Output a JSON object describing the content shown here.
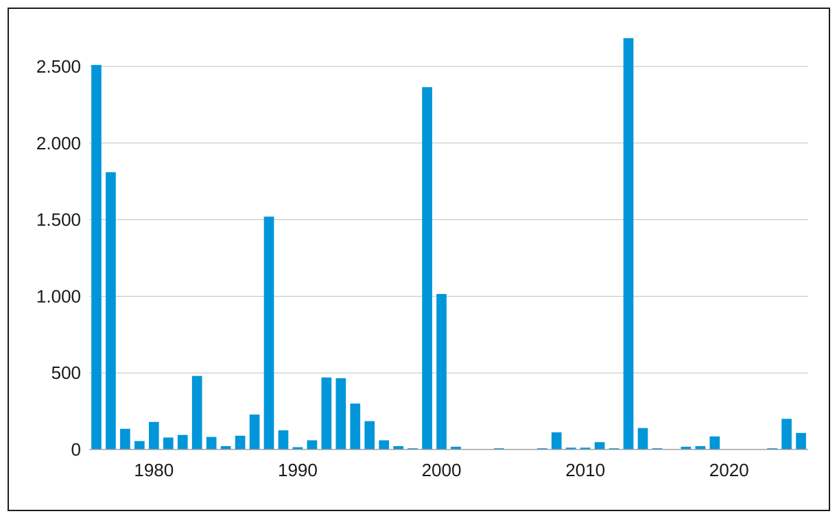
{
  "chart_data": {
    "type": "bar",
    "title": "",
    "xlabel": "",
    "ylabel": "",
    "bar_color": "#0096d9",
    "gridline_color": "#bfbfbf",
    "ylim": [
      0,
      2800
    ],
    "xlim": [
      1975.5,
      2025.5
    ],
    "grid": "horizontal",
    "y_ticks": [
      0,
      500,
      1000,
      1500,
      2000,
      2500
    ],
    "y_tick_labels": [
      "0",
      "500",
      "1.000",
      "1.500",
      "2.000",
      "2.500"
    ],
    "x_ticks": [
      1980,
      1990,
      2000,
      2010,
      2020
    ],
    "x_tick_labels": [
      "1980",
      "1990",
      "2000",
      "2010",
      "2020"
    ],
    "categories": [
      1976,
      1977,
      1978,
      1979,
      1980,
      1981,
      1982,
      1983,
      1984,
      1985,
      1986,
      1987,
      1988,
      1989,
      1990,
      1991,
      1992,
      1993,
      1994,
      1995,
      1996,
      1997,
      1998,
      1999,
      2000,
      2001,
      2002,
      2003,
      2004,
      2005,
      2006,
      2007,
      2008,
      2009,
      2010,
      2011,
      2012,
      2013,
      2014,
      2015,
      2016,
      2017,
      2018,
      2019,
      2020,
      2021,
      2022,
      2023,
      2024,
      2025
    ],
    "values": [
      2510,
      1810,
      135,
      55,
      180,
      78,
      95,
      480,
      82,
      22,
      90,
      228,
      1520,
      125,
      15,
      60,
      470,
      465,
      300,
      185,
      60,
      22,
      8,
      2365,
      1015,
      18,
      0,
      0,
      8,
      0,
      0,
      8,
      112,
      12,
      12,
      48,
      8,
      2685,
      140,
      8,
      0,
      18,
      22,
      85,
      0,
      0,
      0,
      8,
      200,
      108
    ]
  }
}
